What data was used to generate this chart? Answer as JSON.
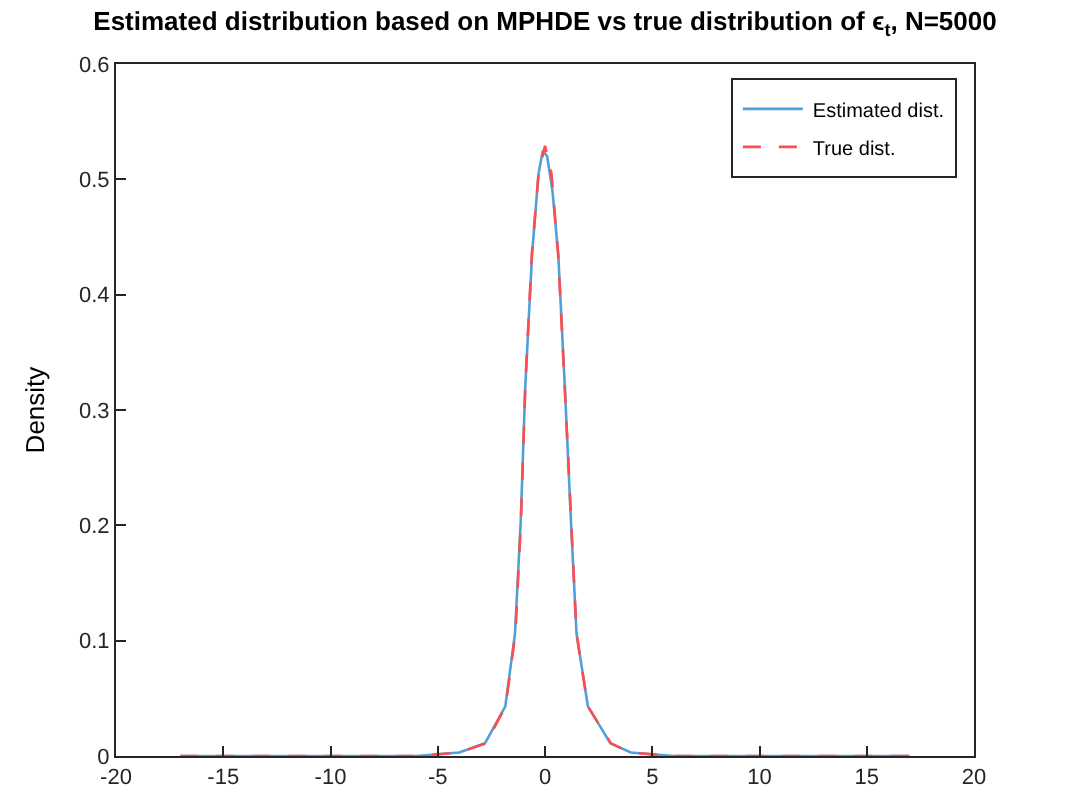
{
  "chart_data": {
    "type": "line",
    "title": "Estimated distribution based on MPHDE vs true distribution of ϵ$_{t}$, N=5000",
    "ylabel": "Density",
    "xlim": [
      -20,
      20
    ],
    "xticks": [
      -20,
      -15,
      -10,
      -5,
      0,
      5,
      10,
      15,
      20
    ],
    "ylim": [
      0,
      0.6
    ],
    "yticks": [
      0,
      0.1,
      0.2,
      0.3,
      0.4,
      0.5,
      0.6
    ],
    "grid": false,
    "legend": "top right",
    "marker": "none",
    "series": [
      {
        "name": "Estimated dist.",
        "color": "#4fa0da",
        "line_style": "solid",
        "x": [
          -17,
          -10,
          -6,
          -4,
          -2.8,
          -1.85,
          -1.4,
          -1.13,
          -0.92,
          -0.6,
          -0.3,
          -0.1,
          0.1,
          0.35,
          0.62,
          0.93,
          1.22,
          1.47,
          2.0,
          3.05,
          4,
          6,
          10,
          17
        ],
        "values": [
          0,
          0,
          0,
          0.003,
          0.011,
          0.043,
          0.106,
          0.204,
          0.32,
          0.436,
          0.505,
          0.525,
          0.52,
          0.49,
          0.434,
          0.318,
          0.2,
          0.106,
          0.043,
          0.011,
          0.003,
          0,
          0,
          0
        ]
      },
      {
        "name": "True dist.",
        "color": "#ff4d4d",
        "line_style": "dashed",
        "x": [
          -17,
          -10,
          -6,
          -4,
          -2.75,
          -1.84,
          -1.38,
          -1.12,
          -0.92,
          -0.61,
          -0.3,
          0,
          0.3,
          0.61,
          0.92,
          1.23,
          1.47,
          2.0,
          3.07,
          4,
          6,
          10,
          17
        ],
        "values": [
          0,
          0,
          0,
          0.003,
          0.011,
          0.043,
          0.106,
          0.204,
          0.32,
          0.436,
          0.505,
          0.529,
          0.505,
          0.436,
          0.32,
          0.2,
          0.106,
          0.043,
          0.011,
          0.003,
          0,
          0,
          0
        ]
      }
    ]
  }
}
